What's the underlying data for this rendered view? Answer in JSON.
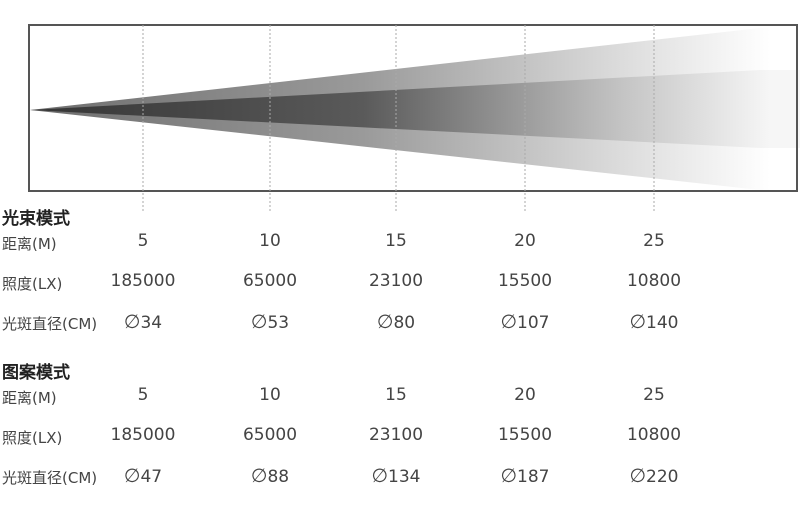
{
  "diagram": {
    "distances": [
      5,
      10,
      15,
      20,
      25
    ],
    "colors": {
      "frame": "#555555",
      "guide": "#aaaaaa",
      "outer_beam": "#7a7a7a",
      "inner_beam": "#3c3c3c"
    }
  },
  "sections": [
    {
      "title": "光束模式",
      "rows": [
        {
          "label": "距离(M)",
          "values": [
            "5",
            "10",
            "15",
            "20",
            "25"
          ]
        },
        {
          "label": "照度(LX)",
          "values": [
            "185000",
            "65000",
            "23100",
            "15500",
            "10800"
          ]
        },
        {
          "label": "光斑直径(CM)",
          "symbol": "∅",
          "values": [
            "34",
            "53",
            "80",
            "107",
            "140"
          ]
        }
      ]
    },
    {
      "title": "图案模式",
      "rows": [
        {
          "label": "距离(M)",
          "values": [
            "5",
            "10",
            "15",
            "20",
            "25"
          ]
        },
        {
          "label": "照度(LX)",
          "values": [
            "185000",
            "65000",
            "23100",
            "15500",
            "10800"
          ]
        },
        {
          "label": "光斑直径(CM)",
          "symbol": "∅",
          "values": [
            "47",
            "88",
            "134",
            "187",
            "220"
          ]
        }
      ]
    }
  ]
}
